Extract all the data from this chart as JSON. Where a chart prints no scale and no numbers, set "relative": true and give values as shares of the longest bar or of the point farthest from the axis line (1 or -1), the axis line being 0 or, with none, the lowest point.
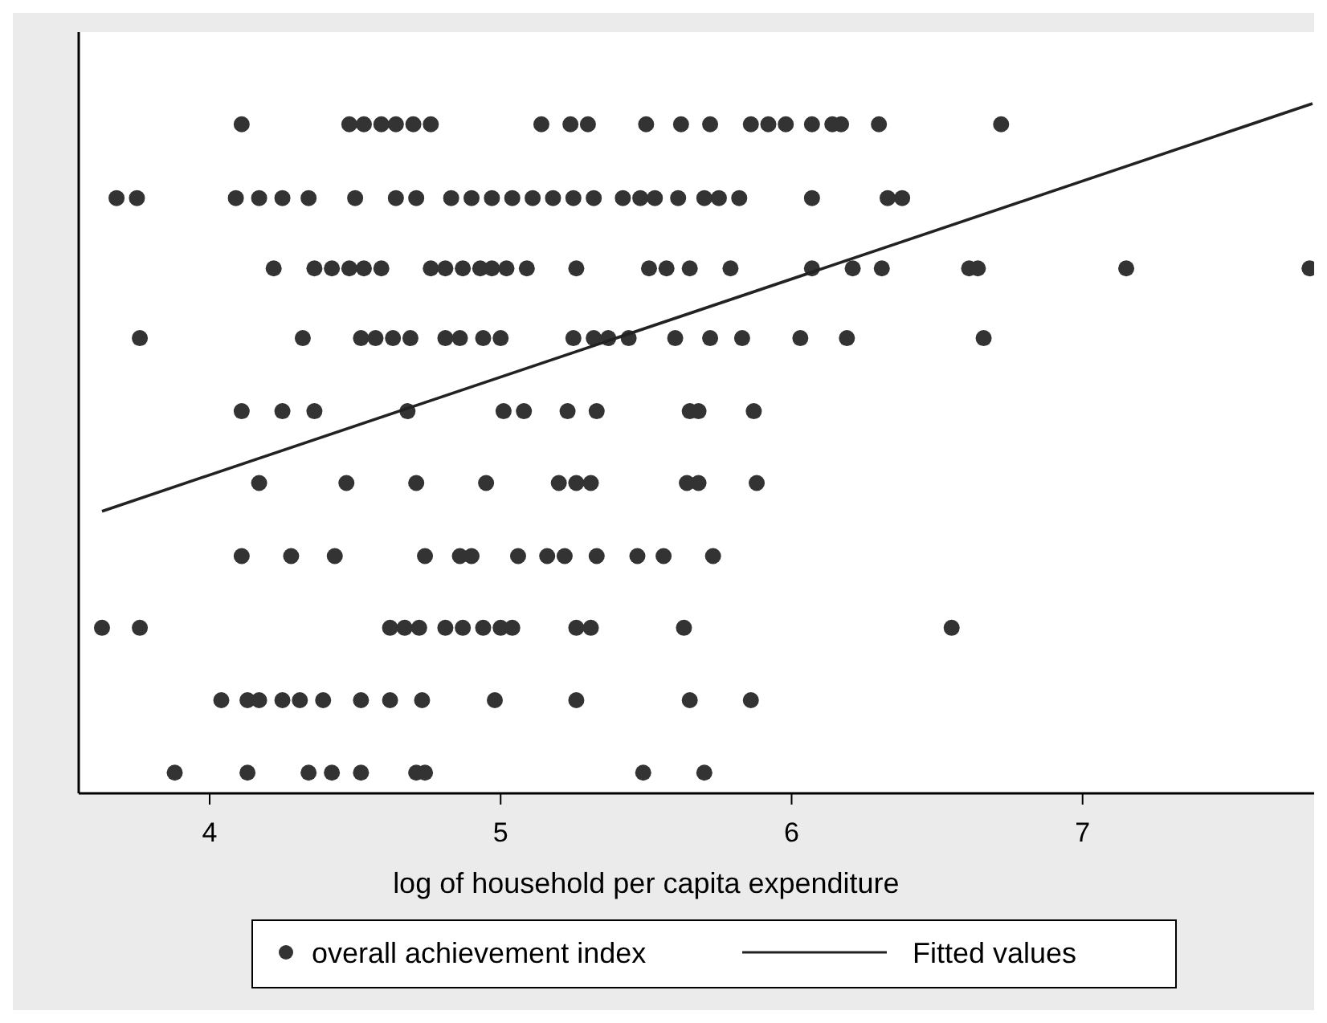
{
  "chart_data": {
    "type": "scatter",
    "relative": true,
    "xlabel": "log of household per capita expenditure",
    "xlim": [
      3.55,
      7.84
    ],
    "xticks": [
      4,
      5,
      6,
      7
    ],
    "legend": "bottom",
    "grid": false,
    "series": [
      {
        "name": "overall achievement index",
        "marker": "circle",
        "color": "#333333",
        "x": [
          4.11,
          4.48,
          4.53,
          4.59,
          4.64,
          4.7,
          4.76,
          5.14,
          5.24,
          5.3,
          5.5,
          5.62,
          5.72,
          5.86,
          5.92,
          5.98,
          6.07,
          6.14,
          6.17,
          6.3,
          6.72,
          3.68,
          3.75,
          4.09,
          4.17,
          4.25,
          4.34,
          4.5,
          4.64,
          4.71,
          4.83,
          4.9,
          4.97,
          5.04,
          5.11,
          5.18,
          5.25,
          5.32,
          5.42,
          5.48,
          5.53,
          5.61,
          5.7,
          5.75,
          5.82,
          6.07,
          6.33,
          6.38,
          4.22,
          4.36,
          4.42,
          4.48,
          4.53,
          4.59,
          4.76,
          4.81,
          4.87,
          4.93,
          4.97,
          5.02,
          5.09,
          5.26,
          5.51,
          5.57,
          5.65,
          5.79,
          6.07,
          6.21,
          6.31,
          6.61,
          6.64,
          7.15,
          7.78,
          3.76,
          4.32,
          4.52,
          4.57,
          4.63,
          4.69,
          4.81,
          4.86,
          4.94,
          5.0,
          5.25,
          5.32,
          5.37,
          5.44,
          5.6,
          5.72,
          5.83,
          6.03,
          6.19,
          6.66,
          4.11,
          4.25,
          4.36,
          4.68,
          5.01,
          5.08,
          5.23,
          5.33,
          5.65,
          5.68,
          5.87,
          4.17,
          4.47,
          4.71,
          4.95,
          5.2,
          5.26,
          5.31,
          5.64,
          5.68,
          5.88,
          4.11,
          4.28,
          4.43,
          4.74,
          4.86,
          4.9,
          5.06,
          5.16,
          5.22,
          5.33,
          5.47,
          5.56,
          5.73,
          3.63,
          3.76,
          4.62,
          4.67,
          4.72,
          4.81,
          4.87,
          4.94,
          5.0,
          5.04,
          5.26,
          5.31,
          5.63,
          6.55,
          4.04,
          4.13,
          4.17,
          4.25,
          4.31,
          4.39,
          4.52,
          4.62,
          4.73,
          4.98,
          5.26,
          5.65,
          5.86,
          3.88,
          4.13,
          4.34,
          4.42,
          4.52,
          4.71,
          4.74,
          5.49,
          5.7
        ],
        "values": [
          0.97,
          0.97,
          0.97,
          0.97,
          0.97,
          0.97,
          0.97,
          0.97,
          0.97,
          0.97,
          0.97,
          0.97,
          0.97,
          0.97,
          0.97,
          0.97,
          0.97,
          0.97,
          0.97,
          0.97,
          0.97,
          0.863,
          0.863,
          0.863,
          0.863,
          0.863,
          0.863,
          0.863,
          0.863,
          0.863,
          0.863,
          0.863,
          0.863,
          0.863,
          0.863,
          0.863,
          0.863,
          0.863,
          0.863,
          0.863,
          0.863,
          0.863,
          0.863,
          0.863,
          0.863,
          0.863,
          0.863,
          0.863,
          0.761,
          0.761,
          0.761,
          0.761,
          0.761,
          0.761,
          0.761,
          0.761,
          0.761,
          0.761,
          0.761,
          0.761,
          0.761,
          0.761,
          0.761,
          0.761,
          0.761,
          0.761,
          0.761,
          0.761,
          0.761,
          0.761,
          0.761,
          0.761,
          0.761,
          0.66,
          0.66,
          0.66,
          0.66,
          0.66,
          0.66,
          0.66,
          0.66,
          0.66,
          0.66,
          0.66,
          0.66,
          0.66,
          0.66,
          0.66,
          0.66,
          0.66,
          0.66,
          0.66,
          0.66,
          0.554,
          0.554,
          0.554,
          0.554,
          0.554,
          0.554,
          0.554,
          0.554,
          0.554,
          0.554,
          0.554,
          0.45,
          0.45,
          0.45,
          0.45,
          0.45,
          0.45,
          0.45,
          0.45,
          0.45,
          0.45,
          0.344,
          0.344,
          0.344,
          0.344,
          0.344,
          0.344,
          0.344,
          0.344,
          0.344,
          0.344,
          0.344,
          0.344,
          0.344,
          0.24,
          0.24,
          0.24,
          0.24,
          0.24,
          0.24,
          0.24,
          0.24,
          0.24,
          0.24,
          0.24,
          0.24,
          0.24,
          0.24,
          0.135,
          0.135,
          0.135,
          0.135,
          0.135,
          0.135,
          0.135,
          0.135,
          0.135,
          0.135,
          0.135,
          0.135,
          0.135,
          0.03,
          0.03,
          0.03,
          0.03,
          0.03,
          0.03,
          0.03,
          0.03,
          0.03
        ]
      },
      {
        "name": "Fitted values",
        "type": "line",
        "line_style": "solid",
        "color": "#222222",
        "x": [
          3.63,
          7.79
        ],
        "values": [
          0.409,
          1
        ]
      }
    ]
  }
}
